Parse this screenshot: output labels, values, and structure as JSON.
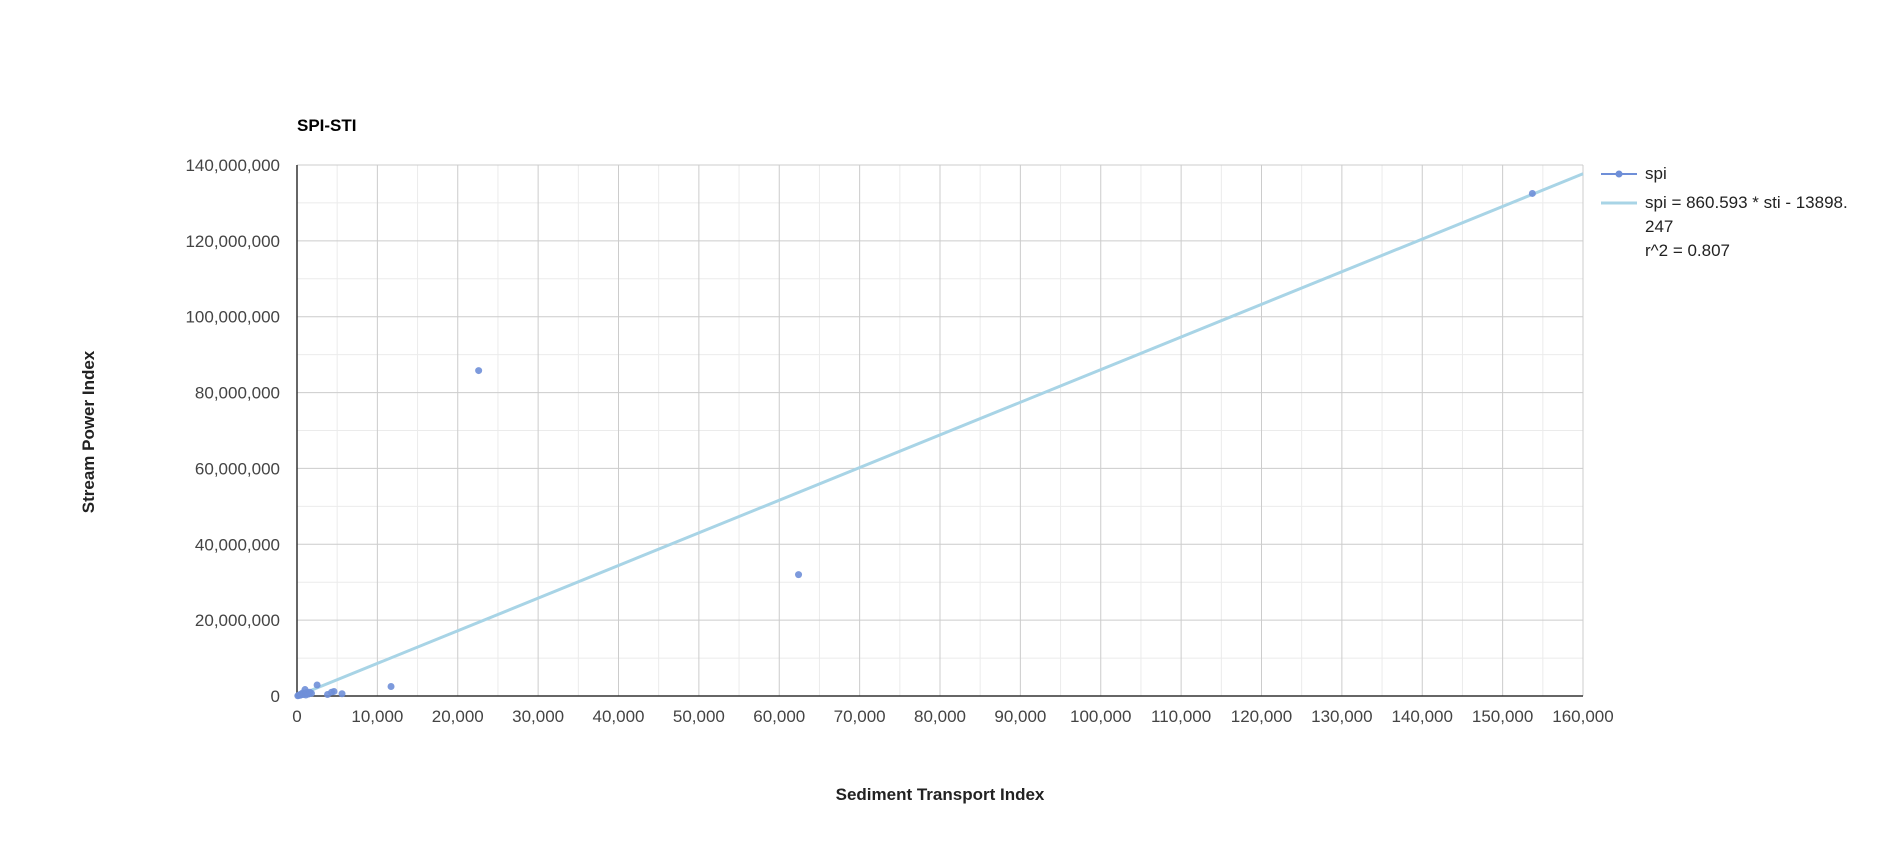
{
  "chart_data": {
    "type": "scatter",
    "title": "SPI-STI",
    "xlabel": "Sediment Transport Index",
    "ylabel": "Stream Power Index",
    "xlim": [
      0,
      160000
    ],
    "ylim": [
      0,
      140000000
    ],
    "x_ticks": [
      0,
      10000,
      20000,
      30000,
      40000,
      50000,
      60000,
      70000,
      80000,
      90000,
      100000,
      110000,
      120000,
      130000,
      140000,
      150000,
      160000
    ],
    "x_tick_labels": [
      "0",
      "10,000",
      "20,000",
      "30,000",
      "40,000",
      "50,000",
      "60,000",
      "70,000",
      "80,000",
      "90,000",
      "100,000",
      "110,000",
      "120,000",
      "130,000",
      "140,000",
      "150,000",
      "160,000"
    ],
    "y_ticks": [
      0,
      20000000,
      40000000,
      60000000,
      80000000,
      100000000,
      120000000,
      140000000
    ],
    "y_tick_labels": [
      "0",
      "20,000,000",
      "40,000,000",
      "60,000,000",
      "80,000,000",
      "100,000,000",
      "120,000,000",
      "140,000,000"
    ],
    "grid": true,
    "legend_position": "right",
    "colors": {
      "points": "#6f8fd8",
      "trendline": "#a8d4e6",
      "axis": "#333333",
      "grid_major": "#cccccc",
      "grid_minor": "#ebebeb"
    },
    "series": [
      {
        "name": "spi",
        "points": [
          {
            "x": 100,
            "y": 50000
          },
          {
            "x": 200,
            "y": 150000
          },
          {
            "x": 300,
            "y": 300000
          },
          {
            "x": 400,
            "y": 200000
          },
          {
            "x": 500,
            "y": 500000
          },
          {
            "x": 600,
            "y": 350000
          },
          {
            "x": 700,
            "y": 800000
          },
          {
            "x": 800,
            "y": 400000
          },
          {
            "x": 900,
            "y": 600000
          },
          {
            "x": 1000,
            "y": 1700000
          },
          {
            "x": 1100,
            "y": 250000
          },
          {
            "x": 1200,
            "y": 900000
          },
          {
            "x": 1400,
            "y": 500000
          },
          {
            "x": 1600,
            "y": 1000000
          },
          {
            "x": 1800,
            "y": 700000
          },
          {
            "x": 2500,
            "y": 2900000
          },
          {
            "x": 3800,
            "y": 400000
          },
          {
            "x": 4300,
            "y": 1000000
          },
          {
            "x": 4600,
            "y": 1200000
          },
          {
            "x": 5600,
            "y": 600000
          },
          {
            "x": 11700,
            "y": 2500000
          },
          {
            "x": 22600,
            "y": 85800000
          },
          {
            "x": 62400,
            "y": 32000000
          },
          {
            "x": 153700,
            "y": 132500000
          }
        ]
      },
      {
        "name": "spi = 860.593 * sti - 13898.247",
        "legend_lines": [
          "spi = 860.593 * sti - 13898.",
          "247",
          "r^2 = 0.807"
        ],
        "trendline": {
          "slope": 860.593,
          "intercept": -13898.247,
          "r2": 0.807
        }
      }
    ]
  }
}
